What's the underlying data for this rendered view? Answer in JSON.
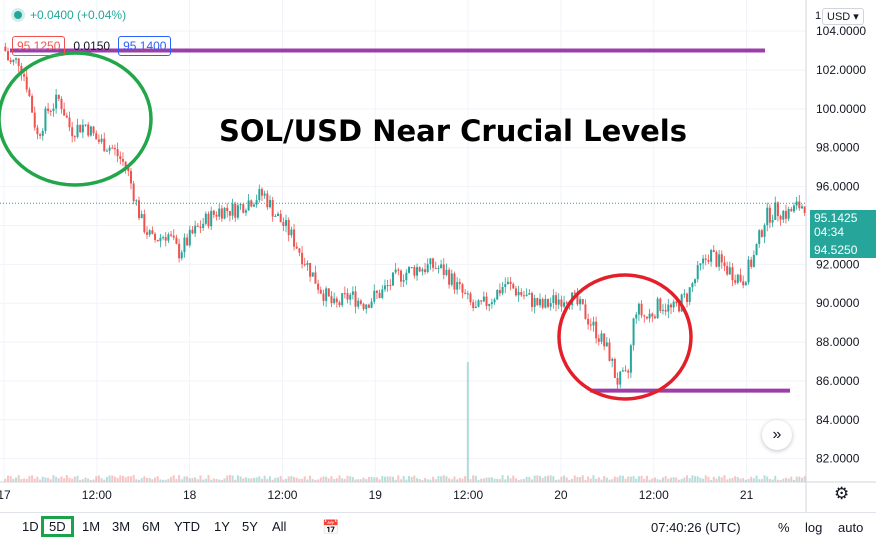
{
  "header": {
    "change": "+0.0400 (+0.04%)",
    "bid": "95.1250",
    "spread": "0.0150",
    "ask": "95.1400",
    "currency": "USD",
    "currency_prefix": "1"
  },
  "annotation": {
    "headline": "SOL/USD Near Crucial Levels",
    "resistance_level": 103.0,
    "support_level": 85.5,
    "colors": {
      "line": "#9b3fa8",
      "top_circle": "#22a64a",
      "bottom_circle": "#e3202a"
    }
  },
  "price_labels": {
    "current": "95.1425",
    "countdown": "04:34",
    "lower": "94.5250"
  },
  "chart_data": {
    "type": "candlestick",
    "y_ticks": [
      "82.0000",
      "84.0000",
      "86.0000",
      "88.0000",
      "90.0000",
      "92.0000",
      "94.0000",
      "96.0000",
      "98.0000",
      "100.0000",
      "102.0000",
      "104.0000"
    ],
    "y_tick_values": [
      82,
      84,
      86,
      88,
      90,
      92,
      94,
      96,
      98,
      100,
      102,
      104
    ],
    "x_ticks": [
      "17",
      "12:00",
      "18",
      "12:00",
      "19",
      "12:00",
      "20",
      "12:00",
      "21"
    ],
    "x_tick_days": [
      0,
      0.5,
      1,
      1.5,
      2,
      2.5,
      3,
      3.5,
      4
    ],
    "ylim": [
      80.8,
      105.6
    ],
    "xlim": [
      0,
      4.32
    ],
    "current_price": 95.1425,
    "price_path": [
      [
        0.0,
        103.2
      ],
      [
        0.03,
        102.3
      ],
      [
        0.08,
        102.5
      ],
      [
        0.12,
        101.4
      ],
      [
        0.18,
        98.6
      ],
      [
        0.24,
        100.0
      ],
      [
        0.3,
        100.5
      ],
      [
        0.36,
        98.9
      ],
      [
        0.44,
        99.2
      ],
      [
        0.5,
        98.4
      ],
      [
        0.58,
        98.0
      ],
      [
        0.66,
        97.0
      ],
      [
        0.74,
        94.2
      ],
      [
        0.8,
        93.2
      ],
      [
        0.88,
        93.6
      ],
      [
        0.94,
        92.6
      ],
      [
        1.02,
        93.6
      ],
      [
        1.08,
        94.2
      ],
      [
        1.16,
        94.8
      ],
      [
        1.24,
        94.8
      ],
      [
        1.34,
        95.4
      ],
      [
        1.4,
        95.6
      ],
      [
        1.46,
        94.6
      ],
      [
        1.54,
        93.6
      ],
      [
        1.62,
        92.2
      ],
      [
        1.7,
        90.8
      ],
      [
        1.78,
        89.8
      ],
      [
        1.86,
        90.4
      ],
      [
        1.94,
        90.0
      ],
      [
        2.04,
        90.6
      ],
      [
        2.12,
        91.4
      ],
      [
        2.22,
        91.8
      ],
      [
        2.32,
        91.9
      ],
      [
        2.38,
        91.6
      ],
      [
        2.46,
        90.6
      ],
      [
        2.54,
        89.6
      ],
      [
        2.62,
        90.2
      ],
      [
        2.7,
        91.0
      ],
      [
        2.8,
        90.4
      ],
      [
        2.9,
        89.8
      ],
      [
        2.98,
        90.2
      ],
      [
        3.04,
        90.4
      ],
      [
        3.12,
        89.6
      ],
      [
        3.2,
        88.4
      ],
      [
        3.26,
        87.4
      ],
      [
        3.3,
        86.0
      ],
      [
        3.36,
        86.2
      ],
      [
        3.4,
        89.8
      ],
      [
        3.46,
        89.2
      ],
      [
        3.54,
        90.0
      ],
      [
        3.6,
        89.6
      ],
      [
        3.68,
        90.4
      ],
      [
        3.74,
        91.6
      ],
      [
        3.8,
        92.6
      ],
      [
        3.86,
        92.0
      ],
      [
        3.92,
        91.6
      ],
      [
        3.98,
        91.2
      ],
      [
        4.04,
        92.4
      ],
      [
        4.1,
        94.4
      ],
      [
        4.16,
        94.8
      ],
      [
        4.22,
        94.6
      ],
      [
        4.28,
        95.0
      ],
      [
        4.32,
        95.1
      ]
    ]
  },
  "bottom_toolbar": {
    "ranges": [
      "1D",
      "5D",
      "1M",
      "3M",
      "6M",
      "YTD",
      "1Y",
      "5Y",
      "All"
    ],
    "active_range": "5D",
    "calendar_icon": "calendar-icon",
    "time": "07:40:26 (UTC)",
    "percent": "%",
    "log": "log",
    "auto": "auto"
  },
  "icons": {
    "scroll": "chevron-double-right-icon",
    "settings": "gear-icon"
  }
}
